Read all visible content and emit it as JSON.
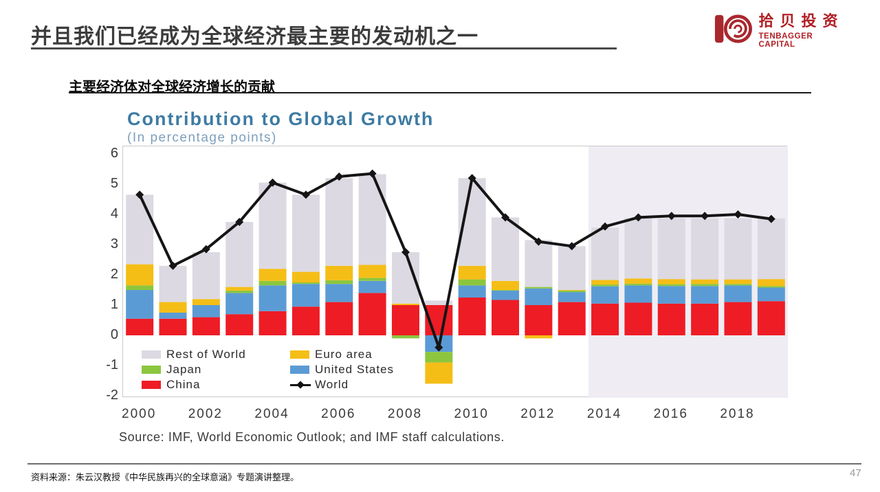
{
  "slide": {
    "title": "并且我们已经成为全球经济最主要的发动机之一",
    "footer": "资料来源：朱云汉教授《中华民族再兴的全球意涵》专题演讲整理。",
    "page_number": "47"
  },
  "logo": {
    "cn": "拾贝投资",
    "en": "TENBAGGER CAPITAL",
    "color": "#b01f24"
  },
  "section": {
    "heading": "主要经济体对全球经济增长的贡献"
  },
  "chart_data": {
    "type": "bar",
    "subtype": "stacked-bar-with-line",
    "title": "Contribution to Global Growth",
    "subtitle": "(In percentage points)",
    "source": "Source: IMF, World Economic Outlook; and IMF staff calculations.",
    "years": [
      2000,
      2001,
      2002,
      2003,
      2004,
      2005,
      2006,
      2007,
      2008,
      2009,
      2010,
      2011,
      2012,
      2013,
      2014,
      2015,
      2016,
      2017,
      2018,
      2019
    ],
    "x_tick_labels": [
      "2000",
      "2002",
      "2004",
      "2006",
      "2008",
      "2010",
      "2012",
      "2014",
      "2016",
      "2018"
    ],
    "y_ticks": [
      6,
      5,
      4,
      3,
      2,
      1,
      0,
      -1,
      -2
    ],
    "ylim": [
      -2,
      6
    ],
    "grid": false,
    "legend_position": "inside-bottom-left",
    "forecast_start_year": 2014,
    "forecast_bg": "#efedf3",
    "series": [
      {
        "name": "China",
        "color": "#ee1c25",
        "values": [
          0.55,
          0.55,
          0.6,
          0.7,
          0.8,
          0.95,
          1.1,
          1.4,
          1.0,
          1.0,
          1.25,
          1.17,
          1.0,
          1.1,
          1.05,
          1.08,
          1.05,
          1.05,
          1.1,
          1.13
        ]
      },
      {
        "name": "United States",
        "color": "#5b9bd5",
        "values": [
          0.95,
          0.2,
          0.4,
          0.7,
          0.85,
          0.75,
          0.6,
          0.4,
          0.0,
          -0.55,
          0.4,
          0.31,
          0.55,
          0.33,
          0.57,
          0.57,
          0.58,
          0.58,
          0.55,
          0.45
        ]
      },
      {
        "name": "Japan",
        "color": "#8cc63e",
        "values": [
          0.15,
          0.0,
          0.0,
          0.08,
          0.15,
          0.05,
          0.12,
          0.1,
          -0.1,
          -0.35,
          0.2,
          0.02,
          0.05,
          0.05,
          0.06,
          0.06,
          0.06,
          0.07,
          0.05,
          0.05
        ]
      },
      {
        "name": "Euro area",
        "color": "#f5be17",
        "values": [
          0.7,
          0.35,
          0.2,
          0.12,
          0.4,
          0.35,
          0.48,
          0.43,
          0.05,
          -0.7,
          0.45,
          0.3,
          -0.1,
          0.02,
          0.15,
          0.17,
          0.17,
          0.15,
          0.15,
          0.23
        ]
      },
      {
        "name": "Rest of World",
        "color": "#dcd9e2",
        "values": [
          2.3,
          1.2,
          1.55,
          2.15,
          2.85,
          2.55,
          2.9,
          3.0,
          1.7,
          0.15,
          2.9,
          2.1,
          1.55,
          1.45,
          1.73,
          2.0,
          2.01,
          2.02,
          2.02,
          2.01
        ]
      }
    ],
    "line": {
      "name": "World",
      "color": "#151515",
      "values": [
        4.65,
        2.3,
        2.85,
        3.75,
        5.05,
        4.65,
        5.25,
        5.35,
        2.75,
        -0.4,
        5.2,
        3.9,
        3.1,
        2.95,
        3.6,
        3.9,
        3.95,
        3.95,
        4.0,
        3.85
      ]
    },
    "legend_columns": [
      [
        "Rest of World",
        "Japan",
        "China"
      ],
      [
        "Euro area",
        "United States",
        "World"
      ]
    ]
  }
}
